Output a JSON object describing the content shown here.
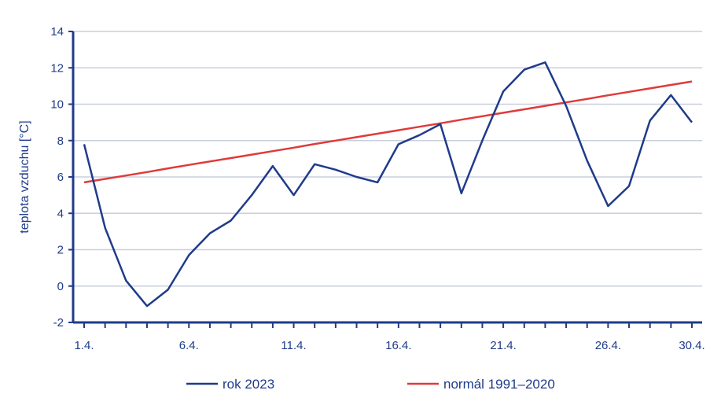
{
  "chart_data": {
    "type": "line",
    "ylabel": "teplota vzduchu [°C]",
    "xlabel": "",
    "title": "",
    "ylim": [
      -2,
      14
    ],
    "y_ticks": [
      -2,
      0,
      2,
      4,
      6,
      8,
      10,
      12,
      14
    ],
    "x": [
      1,
      2,
      3,
      4,
      5,
      6,
      7,
      8,
      9,
      10,
      11,
      12,
      13,
      14,
      15,
      16,
      17,
      18,
      19,
      20,
      21,
      22,
      23,
      24,
      25,
      26,
      27,
      28,
      29,
      30
    ],
    "x_ticks": [
      {
        "x": 1,
        "label": "1.4."
      },
      {
        "x": 6,
        "label": "6.4."
      },
      {
        "x": 11,
        "label": "11.4."
      },
      {
        "x": 16,
        "label": "16.4."
      },
      {
        "x": 21,
        "label": "21.4."
      },
      {
        "x": 26,
        "label": "26.4."
      },
      {
        "x": 30,
        "label": "30.4."
      }
    ],
    "grid": true,
    "legend_position": "bottom",
    "series": [
      {
        "name": "rok 2023",
        "color": "#1f3b8a",
        "values": [
          7.8,
          3.2,
          0.3,
          -1.1,
          -0.2,
          1.7,
          2.9,
          3.6,
          5.0,
          6.6,
          5.0,
          6.7,
          6.4,
          6.0,
          5.7,
          7.8,
          8.3,
          8.9,
          5.1,
          8.0,
          10.7,
          11.9,
          12.3,
          9.9,
          6.9,
          4.4,
          5.5,
          9.1,
          10.5,
          9.0
        ]
      },
      {
        "name": "normál 1991–2020",
        "color": "#e03a3a",
        "values": [
          5.7,
          5.89,
          6.08,
          6.27,
          6.47,
          6.66,
          6.85,
          7.04,
          7.23,
          7.42,
          7.61,
          7.81,
          8.0,
          8.19,
          8.38,
          8.57,
          8.76,
          8.95,
          9.15,
          9.34,
          9.53,
          9.72,
          9.91,
          10.1,
          10.29,
          10.49,
          10.68,
          10.87,
          11.06,
          11.25
        ]
      }
    ]
  }
}
